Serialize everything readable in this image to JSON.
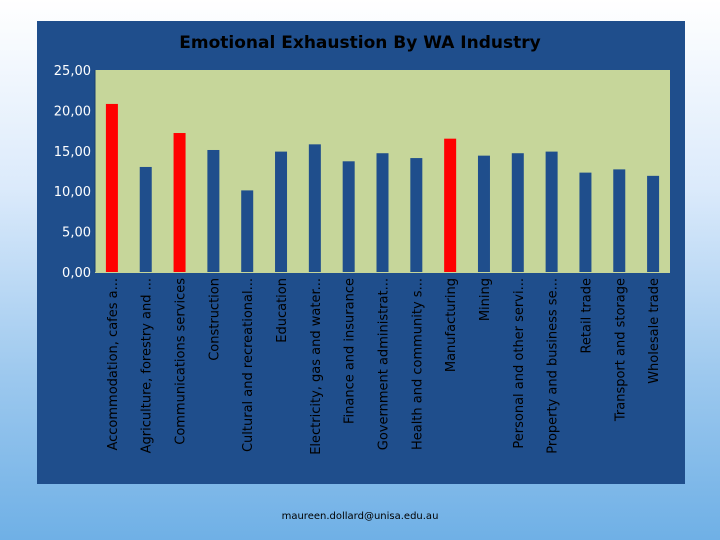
{
  "chart_data": {
    "type": "bar",
    "title": "Emotional Exhaustion By WA Industry",
    "xlabel": "",
    "ylabel": "",
    "ylim": [
      0,
      25
    ],
    "yticks": [
      "0,00",
      "5,00",
      "10,00",
      "15,00",
      "20,00",
      "25,00"
    ],
    "grid": false,
    "categories": [
      "Accommodation, cafes a...",
      "Agriculture, forestry and ...",
      "Communications services",
      "Construction",
      "Cultural and recreational...",
      "Education",
      "Electricity, gas and water...",
      "Finance and insurance",
      "Government administrat...",
      "Health and community s...",
      "Manufacturing",
      "Mining",
      "Personal and other servi...",
      "Property and business se...",
      "Retail trade",
      "Transport and storage",
      "Wholesale trade"
    ],
    "values": [
      20.8,
      13.0,
      17.2,
      15.1,
      10.1,
      14.9,
      15.8,
      13.7,
      14.7,
      14.1,
      16.5,
      14.4,
      14.7,
      14.9,
      12.3,
      12.7,
      11.9
    ],
    "highlighted": [
      0,
      2,
      10
    ],
    "colors": {
      "bar": "#1f4e8c",
      "highlight": "#ff0000",
      "plot_background": "#c6d69a",
      "frame_background": "#1f4e8c"
    }
  },
  "footer": {
    "email": "maureen.dollard@unisa.edu.au"
  }
}
